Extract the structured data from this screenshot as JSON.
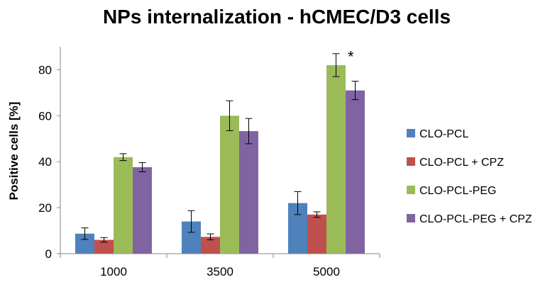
{
  "chart_data": {
    "type": "bar",
    "title": "NPs internalization - hCMEC/D3 cells",
    "xlabel": "",
    "ylabel": "Positive cells [%]",
    "ylim": [
      0,
      90
    ],
    "yticks": [
      0,
      20,
      40,
      60,
      80
    ],
    "categories": [
      "1000",
      "3500",
      "5000"
    ],
    "grid": false,
    "legend_position": "right",
    "series": [
      {
        "name": "CLO-PCL",
        "color": "#4F81BD",
        "values": [
          8.7,
          14.0,
          22.0
        ],
        "errors": [
          2.5,
          4.7,
          5.0
        ],
        "annotations": [
          "",
          "",
          ""
        ]
      },
      {
        "name": "CLO-PCL + CPZ",
        "color": "#C0504D",
        "values": [
          6.0,
          7.3,
          17.0
        ],
        "errors": [
          1.0,
          1.3,
          1.2
        ],
        "annotations": [
          "",
          "*",
          "*"
        ]
      },
      {
        "name": "CLO-PCL-PEG",
        "color": "#9BBB59",
        "values": [
          42.0,
          60.0,
          82.0
        ],
        "errors": [
          1.5,
          6.5,
          5.0
        ],
        "annotations": [
          "",
          "",
          "*"
        ]
      },
      {
        "name": "CLO-PCL-PEG + CPZ",
        "color": "#8064A2",
        "values": [
          37.6,
          53.3,
          71.0
        ],
        "errors": [
          2.0,
          5.5,
          4.0
        ],
        "annotations": [
          "",
          "",
          ""
        ]
      }
    ]
  }
}
